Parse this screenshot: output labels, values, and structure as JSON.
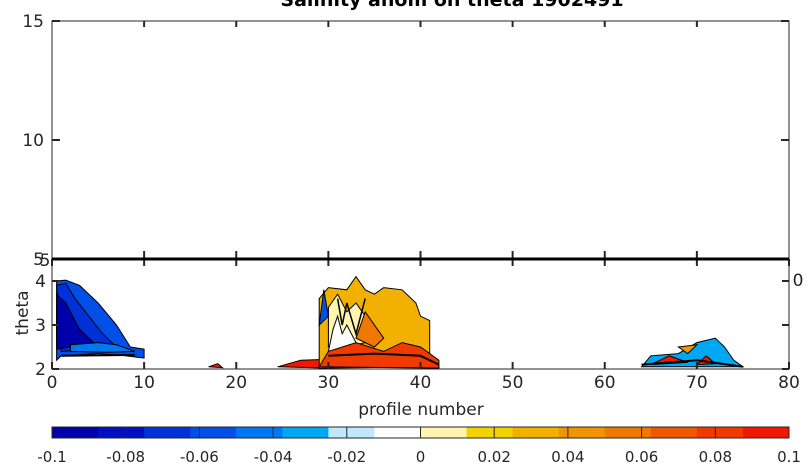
{
  "chart_data": [
    {
      "type": "heatmap",
      "title": "Salinity anom on theta    1902491",
      "ylabel": "",
      "ylim": [
        5,
        15
      ],
      "yticks": [
        "15",
        "10",
        "5"
      ],
      "xlim": [
        0,
        80
      ],
      "top_edge_tick_labels": [
        "5",
        "0"
      ],
      "grid": false,
      "values_visible": "none"
    },
    {
      "type": "heatmap",
      "xlabel": "profile number",
      "ylabel": "theta",
      "xlim": [
        0,
        80
      ],
      "ylim": [
        2,
        4.5
      ],
      "xticks": [
        "0",
        "10",
        "20",
        "30",
        "40",
        "50",
        "60",
        "70",
        "80"
      ],
      "yticks": [
        "2",
        "3",
        "4"
      ],
      "grid": false,
      "regions": [
        {
          "x_range": [
            0,
            10
          ],
          "theta_range": [
            2.1,
            4.0
          ],
          "anomaly_range": [
            -0.1,
            -0.04
          ],
          "color": "blue"
        },
        {
          "x_range": [
            17,
            24
          ],
          "theta_range": [
            2.0,
            2.1
          ],
          "anomaly_range": [
            0.06,
            0.1
          ],
          "color": "red"
        },
        {
          "x_range": [
            24,
            30
          ],
          "theta_range": [
            2.0,
            2.2
          ],
          "anomaly_range": [
            0.06,
            0.1
          ],
          "color": "red"
        },
        {
          "x_range": [
            29,
            42
          ],
          "theta_range": [
            2.0,
            3.8
          ],
          "anomaly_range": [
            0.02,
            0.1
          ],
          "color": "orange-red"
        },
        {
          "x_range": [
            64,
            75
          ],
          "theta_range": [
            2.0,
            2.5
          ],
          "anomaly_range": [
            -0.04,
            0.1
          ],
          "color": "mixed"
        }
      ]
    }
  ],
  "colorbar": {
    "ticks": [
      "-0.1",
      "-0.08",
      "-0.06",
      "-0.04",
      "-0.02",
      "0",
      "0.02",
      "0.04",
      "0.06",
      "0.08",
      "0.1"
    ],
    "colors": [
      "#0000aa",
      "#0010c0",
      "#0030d8",
      "#0050e8",
      "#0078f0",
      "#00a8f4",
      "#bfe8ff",
      "#ffffff",
      "#fff4b0",
      "#f2d200",
      "#f2b000",
      "#f09400",
      "#f07800",
      "#f05800",
      "#f03a00",
      "#f01800"
    ]
  }
}
